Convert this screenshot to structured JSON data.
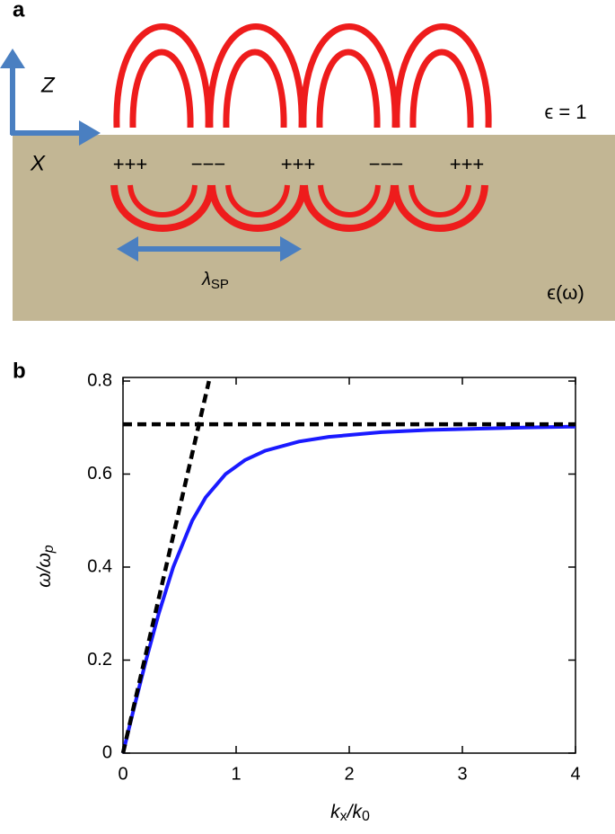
{
  "panel_a": {
    "label": "a",
    "z_label": "Z",
    "x_label": "X",
    "charges": [
      "+++",
      "−−−",
      "+++",
      "−−−",
      "+++"
    ],
    "dielectric_label": "ϵ = 1",
    "metal_label": "ϵ(ω)",
    "wavelength_label": [
      "λ",
      "SP"
    ]
  },
  "chart_data": {
    "type": "line",
    "panel_label": "b",
    "y_label": [
      "ω/ω",
      "p"
    ],
    "x_label": [
      "k",
      "x",
      "/k",
      "0"
    ],
    "xlim": [
      0,
      4
    ],
    "ylim": [
      0,
      0.8
    ],
    "xticks": [
      0,
      1,
      2,
      3,
      4
    ],
    "yticks": [
      0,
      0.2,
      0.4,
      0.6,
      0.8
    ],
    "series": [
      {
        "color": "#1a1aff",
        "style": "solid",
        "x": [
          0,
          0.1,
          0.204,
          0.316,
          0.444,
          0.612,
          0.731,
          0.907,
          1.078,
          1.255,
          1.556,
          1.818,
          2.285,
          2.71,
          3.535,
          4
        ],
        "values": [
          0,
          0.1,
          0.2,
          0.3,
          0.4,
          0.5,
          0.55,
          0.6,
          0.63,
          0.65,
          0.67,
          0.68,
          0.69,
          0.695,
          0.7,
          0.702
        ]
      },
      {
        "color": "#000000",
        "style": "dashed",
        "x": [
          0,
          0.76
        ],
        "values": [
          0,
          0.8
        ]
      },
      {
        "color": "#000000",
        "style": "dashed",
        "x": [
          0,
          4
        ],
        "values": [
          0.707,
          0.707
        ]
      }
    ]
  }
}
